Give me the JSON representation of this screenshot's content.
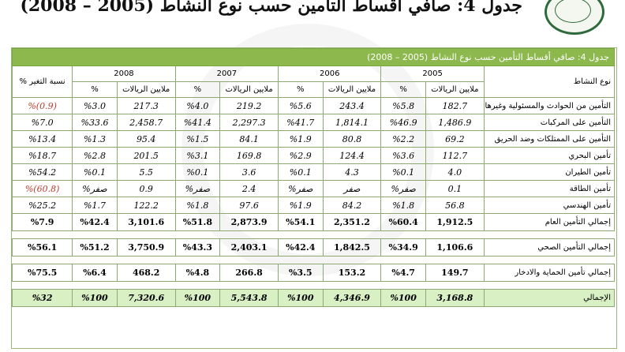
{
  "page_title": "جدول 4: صافي أقساط التأمين حسب نوع النشاط (2005 – 2008)",
  "table": {
    "caption": "جدول 4: صافي أقساط التأمين حسب نوع النشاط (2005 – 2008)",
    "header": {
      "activity": "نوع النشاط",
      "change": "نسبة التغير %",
      "years": [
        "2005",
        "2006",
        "2007",
        "2008"
      ],
      "value_col": "ملايين الريالات",
      "pct_col": "%"
    },
    "rows": [
      {
        "label": "التأمين من الحوادث والمسئولية وغيرها",
        "y2005": [
          "182.7",
          "%5.8"
        ],
        "y2006": [
          "243.4",
          "%5.6"
        ],
        "y2007": [
          "219.2",
          "%4.0"
        ],
        "y2008": [
          "217.3",
          "%3.0"
        ],
        "change": "(0.9)%"
      },
      {
        "label": "التأمين على المركبات",
        "y2005": [
          "1,486.9",
          "%46.9"
        ],
        "y2006": [
          "1,814.1",
          "%41.7"
        ],
        "y2007": [
          "2,297.3",
          "%41.4"
        ],
        "y2008": [
          "2,458.7",
          "%33.6"
        ],
        "change": "%7.0"
      },
      {
        "label": "التأمين على الممتلكات وضد الحريق",
        "y2005": [
          "69.2",
          "%2.2"
        ],
        "y2006": [
          "80.8",
          "%1.9"
        ],
        "y2007": [
          "84.1",
          "%1.5"
        ],
        "y2008": [
          "95.4",
          "%1.3"
        ],
        "change": "%13.4"
      },
      {
        "label": "تأمين البحري",
        "y2005": [
          "112.7",
          "%3.6"
        ],
        "y2006": [
          "124.4",
          "%2.9"
        ],
        "y2007": [
          "169.8",
          "%3.1"
        ],
        "y2008": [
          "201.5",
          "%2.8"
        ],
        "change": "%18.7"
      },
      {
        "label": "تأمين الطيران",
        "y2005": [
          "4.0",
          "%0.1"
        ],
        "y2006": [
          "4.3",
          "%0.1"
        ],
        "y2007": [
          "3.6",
          "%0.1"
        ],
        "y2008": [
          "5.5",
          "%0.1"
        ],
        "change": "%54.2"
      },
      {
        "label": "تأمين الطاقة",
        "y2005": [
          "0.1",
          "صفر%"
        ],
        "y2006": [
          "صفر",
          "صفر%"
        ],
        "y2007": [
          "2.4",
          "صفر%"
        ],
        "y2008": [
          "0.9",
          "صفر%"
        ],
        "change": "(60.8)%"
      },
      {
        "label": "تأمين الهندسي",
        "y2005": [
          "56.8",
          "%1.8"
        ],
        "y2006": [
          "84.2",
          "%1.9"
        ],
        "y2007": [
          "97.6",
          "%1.8"
        ],
        "y2008": [
          "122.2",
          "%1.7"
        ],
        "change": "%25.2"
      }
    ],
    "general_total": {
      "label": "إجمالي التأمين العام",
      "y2005": [
        "1,912.5",
        "%60.4"
      ],
      "y2006": [
        "2,351.2",
        "%54.1"
      ],
      "y2007": [
        "2,873.9",
        "%51.8"
      ],
      "y2008": [
        "3,101.6",
        "%42.4"
      ],
      "change": "%7.9"
    },
    "health_total": {
      "label": "إجمالي التأمين الصحي",
      "y2005": [
        "1,106.6",
        "%34.9"
      ],
      "y2006": [
        "1,842.5",
        "%42.4"
      ],
      "y2007": [
        "2,403.1",
        "%43.3"
      ],
      "y2008": [
        "3,750.9",
        "%51.2"
      ],
      "change": "%56.1"
    },
    "protection_total": {
      "label": "إجمالي تأمين الحماية والادخار",
      "y2005": [
        "149.7",
        "%4.7"
      ],
      "y2006": [
        "153.2",
        "%3.5"
      ],
      "y2007": [
        "266.8",
        "%4.8"
      ],
      "y2008": [
        "468.2",
        "%6.4"
      ],
      "change": "%75.5"
    },
    "grand_total": {
      "label": "الإجمالي",
      "y2005": [
        "3,168.8",
        "%100"
      ],
      "y2006": [
        "4,346.9",
        "%100"
      ],
      "y2007": [
        "5,543.8",
        "%100"
      ],
      "y2008": [
        "7,320.6",
        "%100"
      ],
      "change": "%32"
    }
  },
  "colors": {
    "header_green": "#8cb84e",
    "total_green": "#d9efc4",
    "negative_red": "#c0392b",
    "logo_green": "#2f6a3a"
  },
  "icons": {
    "logo": "sama-emblem"
  }
}
